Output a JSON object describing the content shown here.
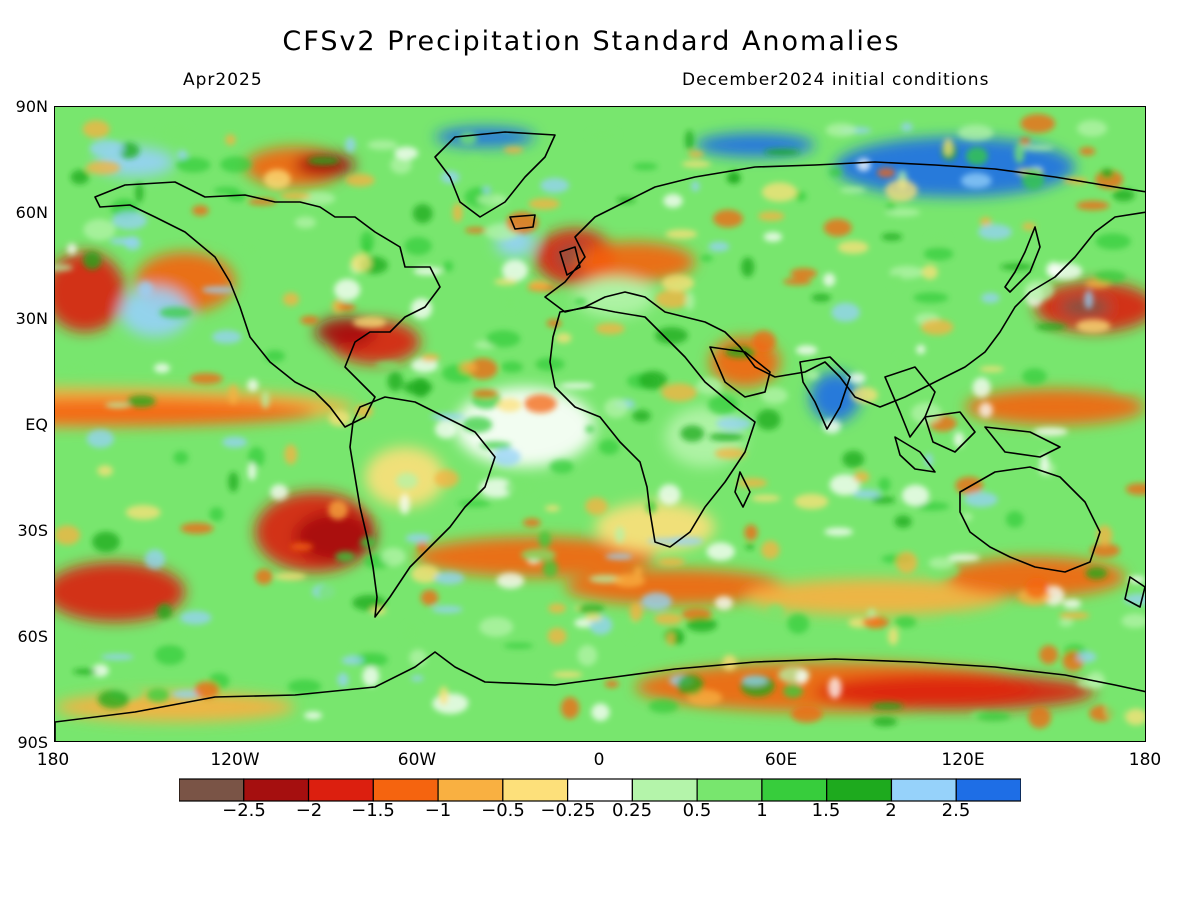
{
  "title": "CFSv2 Precipitation Standard Anomalies",
  "subtitle_left": "Apr2025",
  "subtitle_right": "December2024 initial conditions",
  "lat_labels": [
    "90N",
    "60N",
    "30N",
    "EQ",
    "30S",
    "60S",
    "90S"
  ],
  "lon_labels": [
    "180",
    "120W",
    "60W",
    "0",
    "60E",
    "120E",
    "180"
  ],
  "colorbar": {
    "colors": [
      "#7a5446",
      "#a50f0f",
      "#dc1f0f",
      "#f5640f",
      "#f9b041",
      "#fde07a",
      "#ffffff",
      "#b4f4aa",
      "#78e66e",
      "#37cd3c",
      "#1eaa1e",
      "#96d2fa",
      "#1e6ee6"
    ],
    "labels": [
      "-2.5",
      "-2",
      "-1.5",
      "-1",
      "-0.5",
      "-0.25",
      "0.25",
      "0.5",
      "1",
      "1.5",
      "2",
      "2.5"
    ]
  },
  "map_palette": {
    "strong_dry": "#a50f0f",
    "dry": "#dc1f0f",
    "moderate_dry": "#f5640f",
    "weak_dry": "#f9b041",
    "slight_dry": "#fde07a",
    "neutral": "#ffffff",
    "slight_wet": "#b4f4aa",
    "wet": "#78e66e",
    "moderate_wet": "#37cd3c",
    "strong_wet": "#1eaa1e",
    "very_wet": "#96d2fa",
    "extreme_wet": "#1e6ee6",
    "extreme_dry": "#7a5446",
    "coastline": "#000000"
  }
}
